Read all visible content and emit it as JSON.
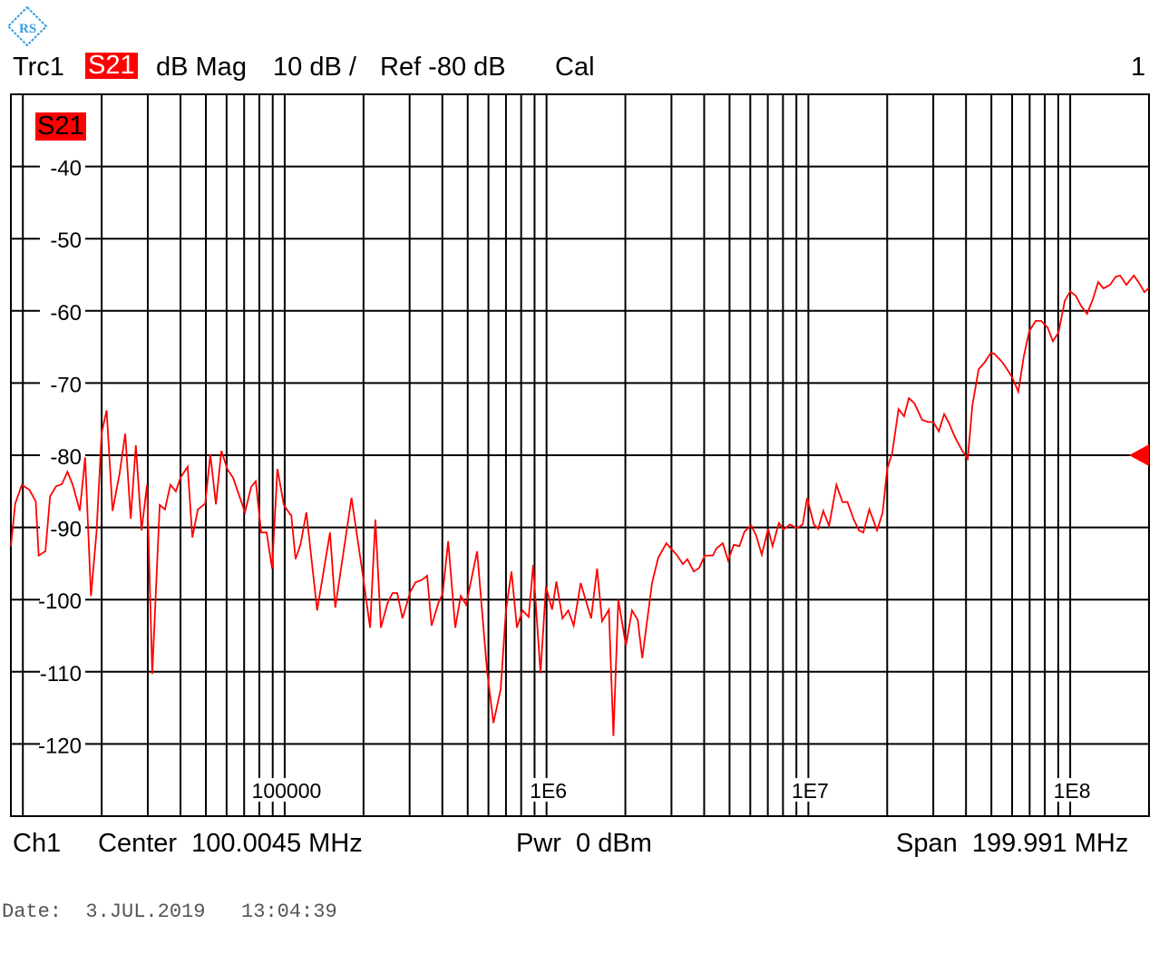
{
  "header": {
    "trace": "Trc1",
    "param": "S21",
    "format": "dB Mag",
    "scale": "10 dB /",
    "ref": "Ref -80 dB",
    "cal": "Cal",
    "window_number": "1"
  },
  "footer": {
    "channel": "Ch1",
    "center": "Center  100.0045 MHz",
    "power": "Pwr  0 dBm",
    "span": "Span  199.991 MHz",
    "date": "Date:  3.JUL.2019   13:04:39"
  },
  "logo": {
    "icon": "rohde-schwarz-logo",
    "color": "#3a9ee0"
  },
  "colors": {
    "trace": "#ff0000",
    "grid": "#000000",
    "label_bg": "#ff0000"
  },
  "chart_data": {
    "type": "line",
    "trace_label": "S21",
    "x_scale": "log",
    "xlim": [
      9000,
      200000000
    ],
    "ylim": [
      -130,
      -30
    ],
    "ref_level": -80,
    "grid": true,
    "y_ticks": [
      -40,
      -50,
      -60,
      -70,
      -80,
      -90,
      -100,
      -110,
      -120
    ],
    "y_tick_labels": [
      "-40",
      "-50",
      "-60",
      "-70",
      "-80",
      "-90",
      "-100",
      "-110",
      "-120"
    ],
    "x_ticks": [
      100000,
      1000000,
      10000000,
      100000000
    ],
    "x_tick_labels": [
      "100000",
      "1E6",
      "1E7",
      "1E8"
    ],
    "series": [
      {
        "x": [
          9000,
          9350,
          9910,
          10600,
          11200,
          11500,
          12200,
          12700,
          13400,
          14100,
          14800,
          15500,
          16500,
          17300,
          18200,
          19100,
          20000,
          20900,
          22000,
          23400,
          24600,
          25800,
          27000,
          28400,
          29800,
          31200,
          33300,
          34900,
          36600,
          38400,
          40000,
          42600,
          44400,
          46600,
          49700,
          52000,
          54600,
          57300,
          60500,
          63500,
          70500,
          74500,
          77500,
          81300,
          85300,
          89500,
          93800,
          99300,
          105000,
          106000,
          110000,
          115000,
          121000,
          133000,
          149000,
          156000,
          180000,
          199000,
          212000,
          222000,
          233000,
          247000,
          258000,
          269000,
          282000,
          301000,
          316000,
          333000,
          350000,
          364000,
          386000,
          401000,
          421000,
          448000,
          470000,
          493000,
          543000,
          593000,
          627000,
          668000,
          700000,
          735000,
          771000,
          809000,
          855000,
          889000,
          948000,
          995000,
          1050000,
          1090000,
          1150000,
          1210000,
          1270000,
          1350000,
          1480000,
          1560000,
          1630000,
          1730000,
          1800000,
          1880000,
          2010000,
          2120000,
          2230000,
          2320000,
          2530000,
          2670000,
          2870000,
          3140000,
          3320000,
          3450000,
          3650000,
          3830000,
          4020000,
          4320000,
          4460000,
          4710000,
          4940000,
          5190000,
          5450000,
          5700000,
          6040000,
          6320000,
          6640000,
          7020000,
          7300000,
          7720000,
          8040000,
          8500000,
          9060000,
          9510000,
          9890000,
          10500000,
          10900000,
          11400000,
          12000000,
          12800000,
          13500000,
          14100000,
          14900000,
          15600000,
          16200000,
          17100000,
          18300000,
          19200000,
          20000000,
          20900000,
          22100000,
          23200000,
          24200000,
          25400000,
          27200000,
          28600000,
          30000000,
          31500000,
          33000000,
          34400000,
          36300000,
          38700000,
          40600000,
          42300000,
          44700000,
          47200000,
          49600000,
          51200000,
          55000000,
          57700000,
          60000000,
          63400000,
          66500000,
          69800000,
          73800000,
          77500000,
          81900000,
          85900000,
          90200000,
          95300000,
          100000000,
          105000000,
          110000000,
          116000000,
          122000000,
          128000000,
          134000000,
          142000000,
          149000000,
          155000000,
          164000000,
          175000000,
          183000000,
          192000000,
          200000000
        ],
        "y": [
          -92.6,
          -86.7,
          -84.1,
          -84.8,
          -86.4,
          -93.9,
          -93.3,
          -85.7,
          -84.3,
          -84.0,
          -82.3,
          -84.1,
          -87.7,
          -80.3,
          -99.5,
          -90.7,
          -76.9,
          -73.8,
          -87.7,
          -82.6,
          -77.0,
          -88.8,
          -78.6,
          -90.4,
          -84.1,
          -110.3,
          -86.9,
          -87.5,
          -84.1,
          -85.0,
          -83.1,
          -81.6,
          -91.4,
          -87.5,
          -86.7,
          -79.9,
          -86.8,
          -79.4,
          -82.0,
          -83.1,
          -87.9,
          -84.4,
          -83.6,
          -90.7,
          -90.7,
          -95.7,
          -81.9,
          -86.9,
          -88.2,
          -88.3,
          -94.4,
          -92.3,
          -87.9,
          -101.5,
          -90.7,
          -101.1,
          -85.9,
          -96.7,
          -103.9,
          -88.9,
          -103.9,
          -100.5,
          -99.1,
          -99.1,
          -102.6,
          -99.0,
          -97.6,
          -97.3,
          -96.7,
          -103.6,
          -100.5,
          -99.2,
          -91.9,
          -103.9,
          -99.5,
          -100.7,
          -93.3,
          -109.9,
          -117.1,
          -112.4,
          -101.5,
          -96.1,
          -103.9,
          -101.5,
          -102.4,
          -95.2,
          -110.2,
          -98.2,
          -101.4,
          -97.5,
          -102.6,
          -101.5,
          -103.6,
          -97.7,
          -102.6,
          -95.7,
          -103.0,
          -101.4,
          -118.9,
          -100.0,
          -106.4,
          -101.5,
          -102.8,
          -108.1,
          -97.7,
          -94.2,
          -92.2,
          -93.8,
          -95.1,
          -94.4,
          -96.1,
          -95.6,
          -93.9,
          -93.9,
          -92.9,
          -92.2,
          -94.6,
          -92.4,
          -92.6,
          -90.6,
          -89.7,
          -91.1,
          -93.8,
          -90.2,
          -92.6,
          -89.4,
          -90.3,
          -89.6,
          -90.1,
          -89.6,
          -85.9,
          -89.6,
          -90.2,
          -87.7,
          -89.8,
          -84.1,
          -86.5,
          -86.5,
          -88.9,
          -90.4,
          -90.7,
          -87.5,
          -90.4,
          -88.0,
          -81.9,
          -79.7,
          -73.6,
          -74.6,
          -72.1,
          -72.8,
          -75.1,
          -75.4,
          -75.4,
          -76.7,
          -74.3,
          -75.5,
          -77.5,
          -79.4,
          -80.5,
          -73.1,
          -68.1,
          -67.1,
          -65.9,
          -65.9,
          -67.1,
          -68.2,
          -69.2,
          -71.2,
          -66.3,
          -62.8,
          -61.4,
          -61.4,
          -62.3,
          -64.2,
          -63.0,
          -58.6,
          -57.3,
          -57.9,
          -59.3,
          -60.4,
          -58.4,
          -56.0,
          -56.9,
          -56.4,
          -55.3,
          -55.1,
          -56.4,
          -55.1,
          -56.1,
          -57.4,
          -56.8
        ]
      }
    ]
  }
}
